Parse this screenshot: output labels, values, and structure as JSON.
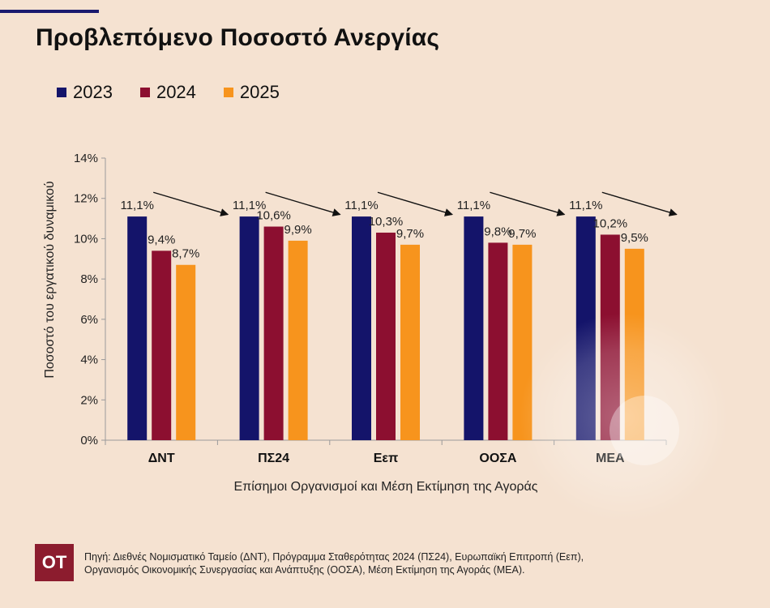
{
  "colors": {
    "accent": "#1a1a6e",
    "series_2023": "#14146a",
    "series_2024": "#8c0f30",
    "series_2025": "#f7941d",
    "logo_bg": "#8c1c2e"
  },
  "header": {
    "title": "Προβλεπόμενο Ποσοστό Ανεργίας"
  },
  "chart_data": {
    "type": "bar",
    "categories": [
      "ΔΝΤ",
      "ΠΣ24",
      "Εεπ",
      "ΟΟΣΑ",
      "ΜΕΑ"
    ],
    "series": [
      {
        "name": "2023",
        "values": [
          11.1,
          11.1,
          11.1,
          11.1,
          11.1
        ],
        "labels": [
          "11,1%",
          "11,1%",
          "11,1%",
          "11,1%",
          "11,1%"
        ]
      },
      {
        "name": "2024",
        "values": [
          9.4,
          10.6,
          10.3,
          9.8,
          10.2
        ],
        "labels": [
          "9,4%",
          "10,6%",
          "10,3%",
          "9,8%",
          "10,2%"
        ]
      },
      {
        "name": "2025",
        "values": [
          8.7,
          9.9,
          9.7,
          9.7,
          9.5
        ],
        "labels": [
          "8,7%",
          "9,9%",
          "9,7%",
          "9,7%",
          "9,5%"
        ]
      }
    ],
    "yticks": [
      "0%",
      "2%",
      "4%",
      "6%",
      "8%",
      "10%",
      "12%",
      "14%"
    ],
    "ylim": [
      0,
      14
    ],
    "xlabel": "Επίσημοι Οργανισμοί και Μέση Εκτίμηση της Αγοράς",
    "ylabel": "Ποσοστό του εργατικού δυναμικού",
    "legend_position": "top-left",
    "grid": false,
    "annotations": "downward-trend arrows over each group"
  },
  "footer": {
    "logo_text": "ΟΤ",
    "source_line1": "Πηγή: Διεθνές Νομισματικό Ταμείο (ΔΝΤ), Πρόγραμμα Σταθερότητας 2024 (ΠΣ24), Ευρωπαϊκή Επιτροπή (Εεπ),",
    "source_line2": "Οργανισμός Οικονομικής Συνεργασίας και Ανάπτυξης (ΟΟΣΑ), Μέση Εκτίμηση της Αγοράς (ΜΕΑ)."
  }
}
